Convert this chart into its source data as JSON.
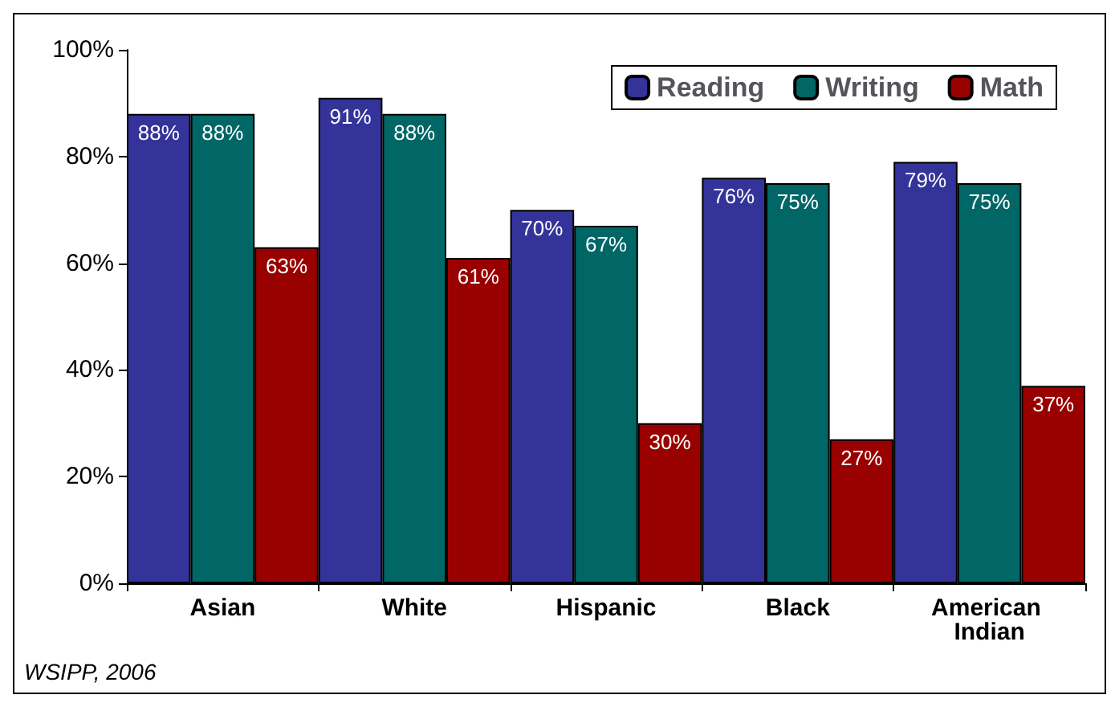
{
  "chart_data": {
    "type": "bar",
    "categories": [
      "Asian",
      "White",
      "Hispanic",
      "Black",
      "American Indian"
    ],
    "series": [
      {
        "name": "Reading",
        "color": "#333399",
        "values": [
          88,
          91,
          70,
          76,
          79
        ],
        "value_labels": [
          "88%",
          "91%",
          "70%",
          "76%",
          "79%"
        ]
      },
      {
        "name": "Writing",
        "color": "#006666",
        "values": [
          88,
          88,
          67,
          75,
          75
        ],
        "value_labels": [
          "88%",
          "88%",
          "67%",
          "75%",
          "75%"
        ]
      },
      {
        "name": "Math",
        "color": "#990000",
        "values": [
          63,
          61,
          30,
          27,
          37
        ],
        "value_labels": [
          "63%",
          "61%",
          "30%",
          "27%",
          "37%"
        ]
      }
    ],
    "ylim": [
      0,
      100
    ],
    "yticks": [
      {
        "value": 0,
        "label": "0%"
      },
      {
        "value": 20,
        "label": "20%"
      },
      {
        "value": 40,
        "label": "40%"
      },
      {
        "value": 60,
        "label": "60%"
      },
      {
        "value": 80,
        "label": "80%"
      },
      {
        "value": 100,
        "label": "100%"
      }
    ],
    "grid": false,
    "legend": "top right",
    "annotations": [
      "WSIPP, 2006"
    ]
  }
}
